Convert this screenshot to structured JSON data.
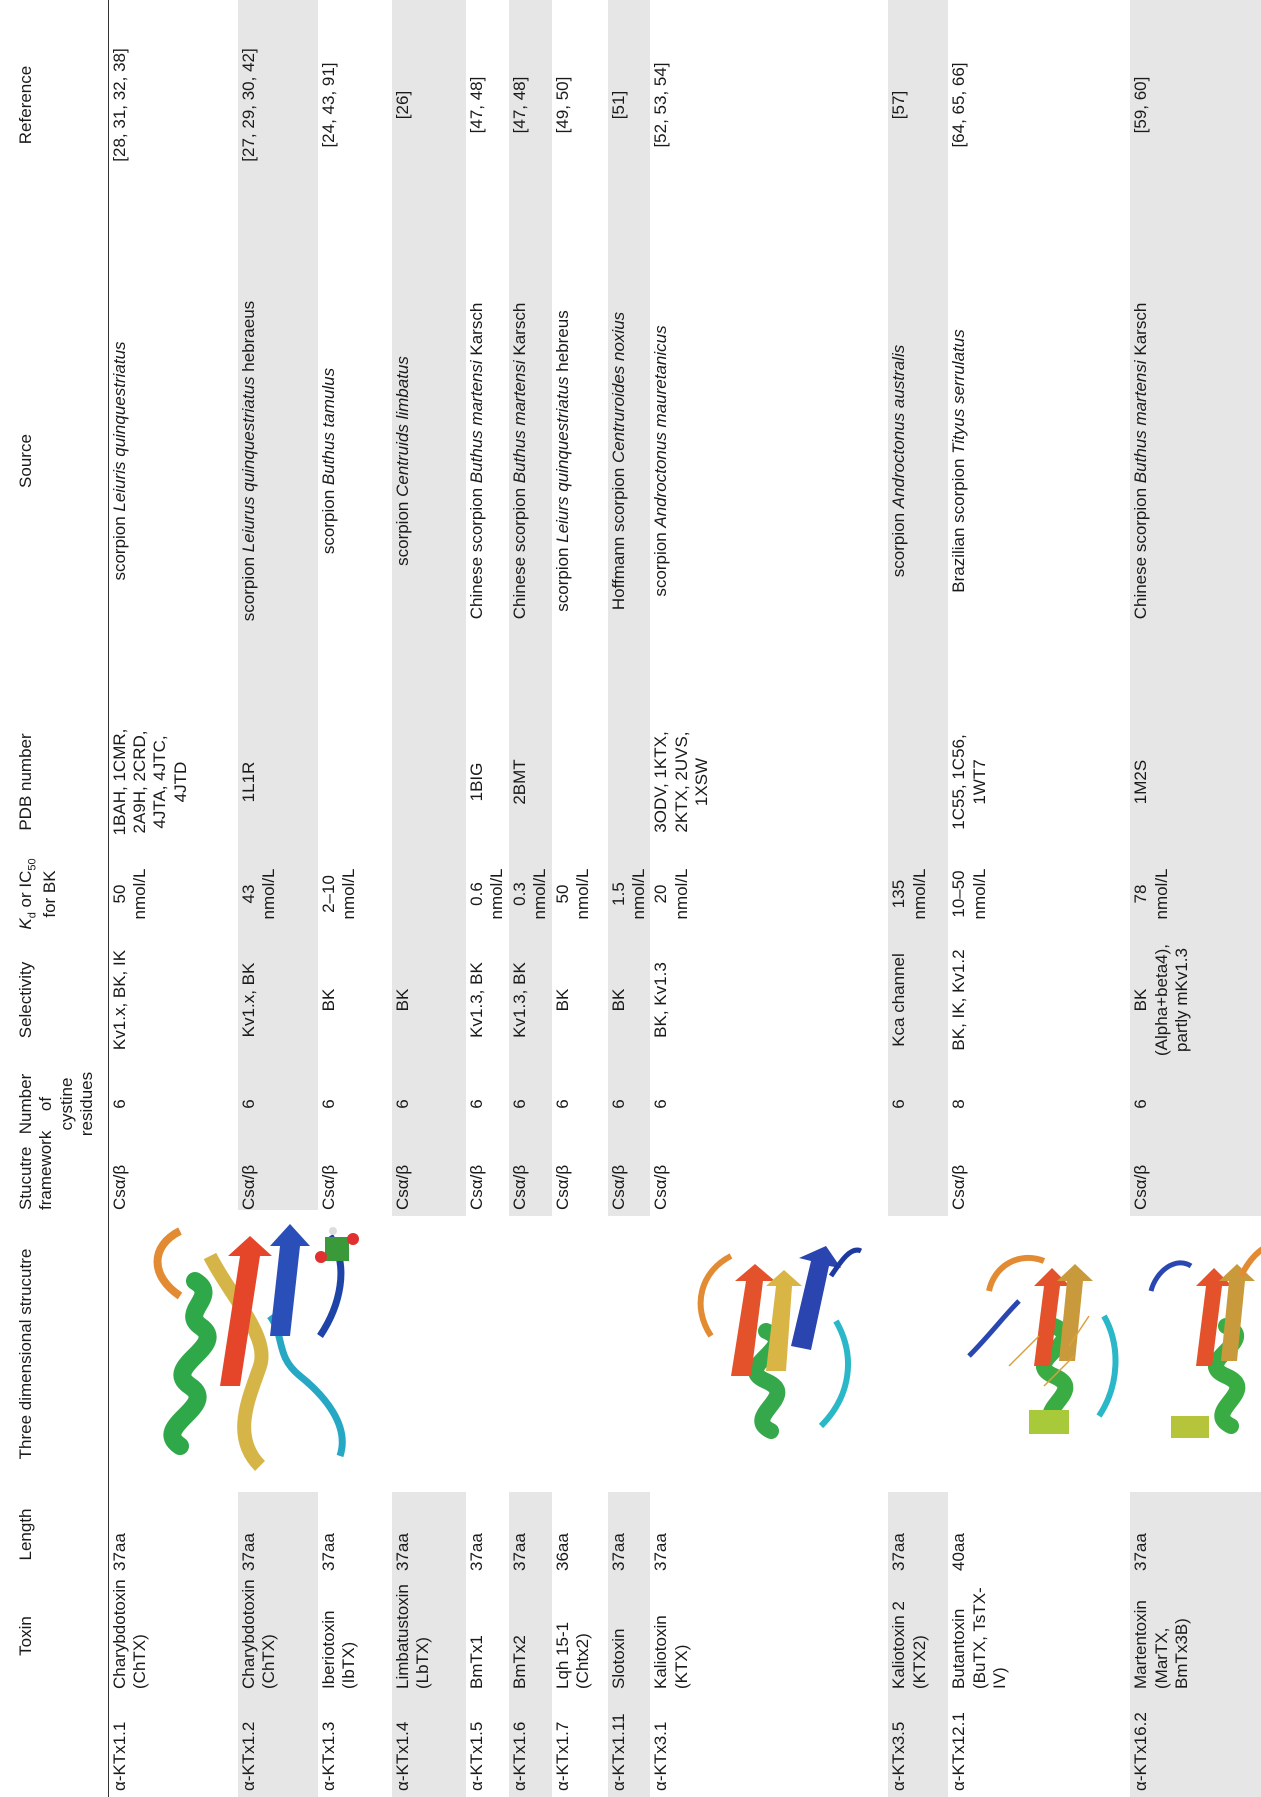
{
  "headers": {
    "id": "",
    "toxin": "Toxin",
    "length": "Length",
    "structure": "Three dimensional strucutre",
    "framework": "Stucutre framework",
    "cystine": "Number of cystine residues",
    "selectivity": "Selectivity",
    "kd_k": "K",
    "kd_sub": "d",
    "kd_mid": " or IC",
    "kd_sub2": "50",
    "kd_tail": " for BK",
    "pdb": "PDB number",
    "source": "Source",
    "reference": "Reference"
  },
  "rows": [
    {
      "id": "α-KTx1.1",
      "toxin": "Charybdotoxin (ChTX)",
      "length": "37aa",
      "framework": "Csα/β",
      "cystine": "6",
      "selectivity": "Kv1.x, BK, IK",
      "kd": "50 nmol/L",
      "pdb": "1BAH, 1CMR, 2A9H, 2CRD, 4JTA, 4JTC, 4JTD",
      "source_pre": "scorpion ",
      "source_ital": "Leiuris quinquestriatus",
      "source_post": "",
      "reference": "[28, 31, 32, 38]"
    },
    {
      "id": "α-KTx1.2",
      "toxin": "Charybdotoxin (ChTX)",
      "length": "37aa",
      "framework": "Csα/β",
      "cystine": "6",
      "selectivity": "Kv1.x, BK",
      "kd": "43 nmol/L",
      "pdb": "1L1R",
      "source_pre": "scorpion ",
      "source_ital": "Leiurus quinquestriatus",
      "source_post": " hebraeus",
      "reference": "[27, 29, 30, 42]"
    },
    {
      "id": "α-KTx1.3",
      "toxin": "Iberiotoxin (IbTX)",
      "length": "37aa",
      "framework": "Csα/β",
      "cystine": "6",
      "selectivity": "BK",
      "kd": "2–10 nmol/L",
      "pdb": "",
      "source_pre": "scorpion ",
      "source_ital": "Buthus tamulus",
      "source_post": "",
      "reference": "[24, 43, 91]"
    },
    {
      "id": "α-KTx1.4",
      "toxin": "Limbatustoxin (LbTX)",
      "length": "37aa",
      "framework": "Csα/β",
      "cystine": "6",
      "selectivity": "BK",
      "kd": "",
      "pdb": "",
      "source_pre": "scorpion ",
      "source_ital": "Centruids limbatus",
      "source_post": "",
      "reference": "[26]"
    },
    {
      "id": "α-KTx1.5",
      "toxin": "BmTx1",
      "length": "37aa",
      "framework": "Csα/β",
      "cystine": "6",
      "selectivity": "Kv1.3, BK",
      "kd": "0.6 nmol/L",
      "pdb": "1BIG",
      "source_pre": "Chinese scorpion ",
      "source_ital": "Buthus martensi",
      "source_post": " Karsch",
      "reference": "[47, 48]"
    },
    {
      "id": "α-KTx1.6",
      "toxin": "BmTx2",
      "length": "37aa",
      "framework": "Csα/β",
      "cystine": "6",
      "selectivity": "Kv1.3, BK",
      "kd": "0.3 nmol/L",
      "pdb": "2BMT",
      "source_pre": "Chinese scorpion ",
      "source_ital": "Buthus martensi",
      "source_post": " Karsch",
      "reference": "[47, 48]"
    },
    {
      "id": "α-KTx1.7",
      "toxin": "Lqh 15-1 (Chtx2)",
      "length": "36aa",
      "framework": "Csα/β",
      "cystine": "6",
      "selectivity": "BK",
      "kd": "50 nmol/L",
      "pdb": "",
      "source_pre": "scorpion ",
      "source_ital": "Leiurs quinquestriatus",
      "source_post": " hebreus",
      "reference": "[49, 50]"
    },
    {
      "id": "α-KTx1.11",
      "toxin": "Slotoxin",
      "length": "37aa",
      "framework": "Csα/β",
      "cystine": "6",
      "selectivity": "BK",
      "kd": "1.5 nmol/L",
      "pdb": "",
      "source_pre": "Hoffmann scorpion ",
      "source_ital": "Centruroides noxius",
      "source_post": "",
      "reference": "[51]"
    },
    {
      "id": "α-KTx3.1",
      "toxin": "Kaliotoxin (KTX)",
      "length": "37aa",
      "framework": "Csα/β",
      "cystine": "6",
      "selectivity": "BK, Kv1.3",
      "kd": "20 nmol/L",
      "pdb": "3ODV, 1KTX, 2KTX, 2UVS, 1XSW",
      "source_pre": "scorpion ",
      "source_ital": "Androctonus mauretanicus",
      "source_post": "",
      "reference": "[52, 53, 54]"
    },
    {
      "id": "α-KTx3.5",
      "toxin": "Kaliotoxin 2 (KTX2)",
      "length": "37aa",
      "framework": "",
      "cystine": "6",
      "selectivity": "Kca channel",
      "kd": "135 nmol/L",
      "pdb": "",
      "source_pre": "scorpion ",
      "source_ital": "Androctonus australis",
      "source_post": "",
      "reference": "[57]"
    },
    {
      "id": "α-KTx12.1",
      "toxin": "Butantoxin (BuTX, TsTX-IV)",
      "length": "40aa",
      "framework": "Csα/β",
      "cystine": "8",
      "selectivity": "BK, IK, Kv1.2",
      "kd": "10–50 nmol/L",
      "pdb": "1C55, 1C56, 1WT7",
      "source_pre": "Brazilian scorpion ",
      "source_ital": "Tityus serrulatus",
      "source_post": "",
      "reference": "[64, 65, 66]"
    },
    {
      "id": "α-KTx16.2",
      "toxin": "Martentoxin (MarTX, BmTx3B)",
      "length": "37aa",
      "framework": "Csα/β",
      "cystine": "6",
      "selectivity": "BK (Alpha+beta4), partly mKv1.3",
      "kd": "78 nmol/L",
      "pdb": "1M2S",
      "source_pre": "Chinese scorpion ",
      "source_ital": "Buthus martensi",
      "source_post": " Karsch",
      "reference": "[59, 60]"
    }
  ],
  "structures": [
    {
      "icon": "protein-ribbon-charybdotoxin-icon"
    },
    {
      "icon": "protein-ribbon-kaliotoxin-icon"
    },
    {
      "icon": "protein-ribbon-butantoxin-icon"
    },
    {
      "icon": "protein-ribbon-martentoxin-icon"
    }
  ]
}
